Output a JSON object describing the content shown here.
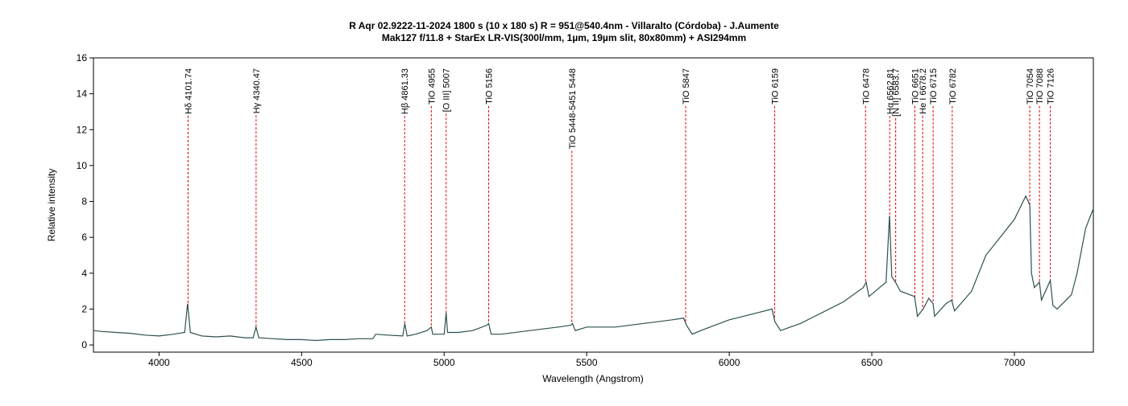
{
  "chart_data": {
    "type": "line",
    "title": "R Aqr  02.9222-11-2024   1800 s (10 x 180 s)  R = 951@540.4nm - Villaralto (Córdoba) - J.Aumente",
    "subtitle": "Mak127 f/11.8 + StarEx LR-VIS(300l/mm, 1µm, 19µm slit, 80x80mm) + ASI294mm",
    "x_label": "Wavelength (Angstrom)",
    "y_label": "Relative intensity",
    "xlim": [
      3770,
      7277
    ],
    "ylim": [
      -0.4,
      16
    ],
    "xticks": [
      4000,
      4500,
      5000,
      5500,
      6000,
      6500,
      7000
    ],
    "yticks": [
      0,
      2,
      4,
      6,
      8,
      10,
      12,
      14,
      16
    ],
    "series": [
      {
        "color": "#2f4f4f",
        "x": [
          3770,
          3800,
          3850,
          3900,
          3950,
          4000,
          4050,
          4090,
          4100,
          4110,
          4150,
          4200,
          4250,
          4300,
          4330,
          4340,
          4350,
          4400,
          4450,
          4500,
          4550,
          4600,
          4650,
          4700,
          4750,
          4760,
          4800,
          4855,
          4862,
          4870,
          4900,
          4940,
          4955,
          4960,
          5000,
          5007,
          5012,
          5050,
          5100,
          5150,
          5156,
          5165,
          5200,
          5300,
          5400,
          5445,
          5450,
          5460,
          5500,
          5600,
          5700,
          5800,
          5840,
          5850,
          5870,
          5900,
          6000,
          6100,
          6150,
          6160,
          6180,
          6250,
          6300,
          6400,
          6470,
          6480,
          6490,
          6550,
          6562,
          6570,
          6583,
          6600,
          6650,
          6660,
          6680,
          6700,
          6715,
          6720,
          6760,
          6780,
          6790,
          6850,
          6900,
          6950,
          7000,
          7040,
          7054,
          7060,
          7070,
          7088,
          7095,
          7126,
          7135,
          7150,
          7200,
          7220,
          7250,
          7277
        ],
        "values": [
          0.8,
          0.75,
          0.7,
          0.65,
          0.55,
          0.5,
          0.6,
          0.7,
          2.3,
          0.7,
          0.5,
          0.45,
          0.5,
          0.4,
          0.4,
          1.0,
          0.4,
          0.35,
          0.3,
          0.3,
          0.25,
          0.3,
          0.3,
          0.35,
          0.35,
          0.6,
          0.55,
          0.5,
          1.2,
          0.5,
          0.6,
          0.8,
          1.0,
          0.6,
          0.6,
          1.8,
          0.7,
          0.7,
          0.8,
          1.1,
          1.2,
          0.6,
          0.6,
          0.8,
          1.0,
          1.1,
          1.2,
          0.8,
          1.0,
          1.0,
          1.2,
          1.4,
          1.5,
          1.1,
          0.6,
          0.8,
          1.4,
          1.8,
          2.0,
          1.3,
          0.8,
          1.2,
          1.6,
          2.4,
          3.2,
          3.5,
          2.7,
          3.5,
          7.2,
          3.8,
          3.5,
          3.0,
          2.7,
          1.6,
          2.0,
          2.6,
          2.3,
          1.6,
          2.3,
          2.5,
          1.9,
          3.0,
          5.0,
          6.0,
          7.0,
          8.3,
          7.8,
          4.0,
          3.2,
          3.5,
          2.5,
          3.6,
          2.2,
          2.0,
          2.8,
          4.0,
          6.5,
          7.6
        ]
      }
    ],
    "annotations": [
      {
        "x": 4101.74,
        "label": "Hδ 4101.74"
      },
      {
        "x": 4340.47,
        "label": "Hγ 4340.47"
      },
      {
        "x": 4861.33,
        "label": "Hβ 4861.33"
      },
      {
        "x": 4955,
        "label": "TiO 4955"
      },
      {
        "x": 5007,
        "label": "[O III] 5007"
      },
      {
        "x": 5156,
        "label": "TiO 5156"
      },
      {
        "x": 5448,
        "label": "TiO 5448-5451 5448"
      },
      {
        "x": 5847,
        "label": "TiO 5847"
      },
      {
        "x": 6159,
        "label": "TiO 6159"
      },
      {
        "x": 6478,
        "label": "TiO 6478"
      },
      {
        "x": 6562.81,
        "label": "Hα 6562.81"
      },
      {
        "x": 6583.7,
        "label": "[N II] 6583.7"
      },
      {
        "x": 6651,
        "label": "TiO 6651"
      },
      {
        "x": 6678.2,
        "label": "He I 6678.2"
      },
      {
        "x": 6715,
        "label": "TiO 6715"
      },
      {
        "x": 6782,
        "label": "TiO 6782"
      },
      {
        "x": 7054,
        "label": "TiO 7054"
      },
      {
        "x": 7088,
        "label": "TiO 7088"
      },
      {
        "x": 7126,
        "label": "TiO 7126"
      }
    ]
  }
}
